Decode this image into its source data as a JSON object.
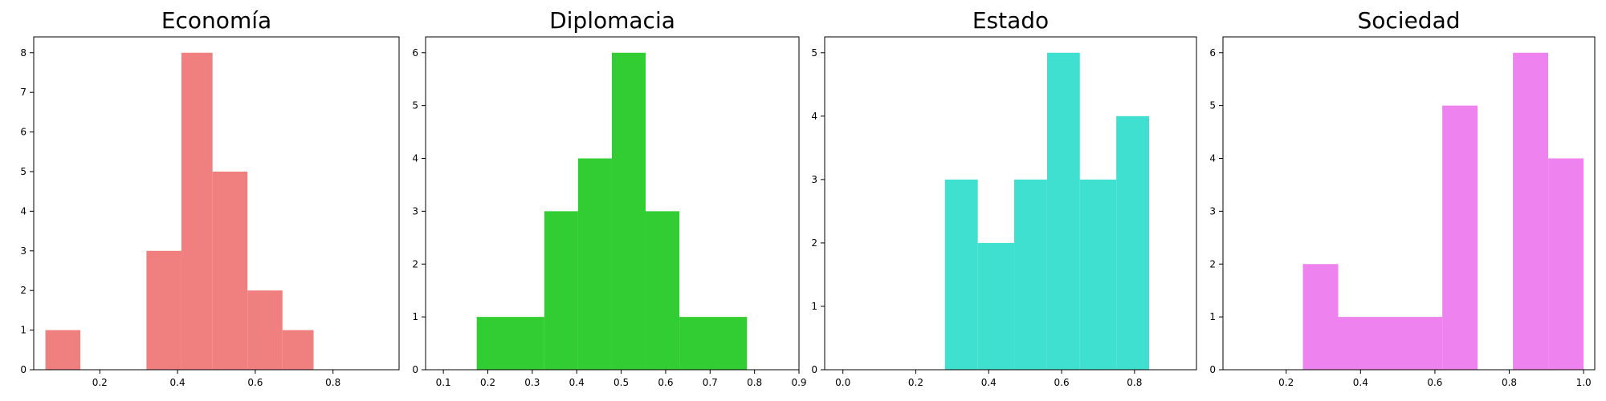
{
  "chart_data": [
    {
      "type": "bar",
      "title": "Economía",
      "color": "#f08080",
      "xlim": [
        0.03,
        0.97
      ],
      "ylim": [
        0,
        8.4
      ],
      "xticks": [
        0.2,
        0.4,
        0.6,
        0.8
      ],
      "xtick_labels": [
        "0.2",
        "0.4",
        "0.6",
        "0.8"
      ],
      "yticks": [
        0,
        1,
        2,
        3,
        4,
        5,
        6,
        7,
        8
      ],
      "ytick_labels": [
        "0",
        "1",
        "2",
        "3",
        "4",
        "5",
        "6",
        "7",
        "8"
      ],
      "bins": [
        {
          "x0": 0.06,
          "x1": 0.15,
          "count": 1
        },
        {
          "x0": 0.15,
          "x1": 0.23,
          "count": 0
        },
        {
          "x0": 0.23,
          "x1": 0.32,
          "count": 0
        },
        {
          "x0": 0.32,
          "x1": 0.41,
          "count": 3
        },
        {
          "x0": 0.41,
          "x1": 0.49,
          "count": 8
        },
        {
          "x0": 0.49,
          "x1": 0.58,
          "count": 5
        },
        {
          "x0": 0.58,
          "x1": 0.67,
          "count": 2
        },
        {
          "x0": 0.67,
          "x1": 0.75,
          "count": 1
        }
      ]
    },
    {
      "type": "bar",
      "title": "Diplomacia",
      "color": "#32cd32",
      "xlim": [
        0.06,
        0.9
      ],
      "ylim": [
        0,
        6.3
      ],
      "xticks": [
        0.1,
        0.2,
        0.3,
        0.4,
        0.5,
        0.6,
        0.7,
        0.8,
        0.9
      ],
      "xtick_labels": [
        "0.1",
        "0.2",
        "0.3",
        "0.4",
        "0.5",
        "0.6",
        "0.7",
        "0.8",
        "0.9"
      ],
      "yticks": [
        0,
        1,
        2,
        3,
        4,
        5,
        6
      ],
      "ytick_labels": [
        "0",
        "1",
        "2",
        "3",
        "4",
        "5",
        "6"
      ],
      "bins": [
        {
          "x0": 0.175,
          "x1": 0.327,
          "count": 1
        },
        {
          "x0": 0.327,
          "x1": 0.403,
          "count": 3
        },
        {
          "x0": 0.403,
          "x1": 0.479,
          "count": 4
        },
        {
          "x0": 0.479,
          "x1": 0.555,
          "count": 6
        },
        {
          "x0": 0.555,
          "x1": 0.631,
          "count": 3
        },
        {
          "x0": 0.631,
          "x1": 0.783,
          "count": 1
        }
      ]
    },
    {
      "type": "bar",
      "title": "Estado",
      "color": "#40e0d0",
      "xlim": [
        -0.05,
        0.97
      ],
      "ylim": [
        0,
        5.25
      ],
      "xticks": [
        0.0,
        0.2,
        0.4,
        0.6,
        0.8
      ],
      "xtick_labels": [
        "0.0",
        "0.2",
        "0.4",
        "0.6",
        "0.8"
      ],
      "yticks": [
        0,
        1,
        2,
        3,
        4,
        5
      ],
      "ytick_labels": [
        "0",
        "1",
        "2",
        "3",
        "4",
        "5"
      ],
      "bins": [
        {
          "x0": 0.28,
          "x1": 0.37,
          "count": 3
        },
        {
          "x0": 0.37,
          "x1": 0.47,
          "count": 2
        },
        {
          "x0": 0.47,
          "x1": 0.56,
          "count": 3
        },
        {
          "x0": 0.56,
          "x1": 0.65,
          "count": 5
        },
        {
          "x0": 0.65,
          "x1": 0.75,
          "count": 3
        },
        {
          "x0": 0.75,
          "x1": 0.84,
          "count": 4
        }
      ]
    },
    {
      "type": "bar",
      "title": "Sociedad",
      "color": "#ee82ee",
      "xlim": [
        0.03,
        1.03
      ],
      "ylim": [
        0,
        6.3
      ],
      "xticks": [
        0.2,
        0.4,
        0.6,
        0.8,
        1.0
      ],
      "xtick_labels": [
        "0.2",
        "0.4",
        "0.6",
        "0.8",
        "1.0"
      ],
      "yticks": [
        0,
        1,
        2,
        3,
        4,
        5,
        6
      ],
      "ytick_labels": [
        "0",
        "1",
        "2",
        "3",
        "4",
        "5",
        "6"
      ],
      "bins": [
        {
          "x0": 0.245,
          "x1": 0.34,
          "count": 2
        },
        {
          "x0": 0.34,
          "x1": 0.62,
          "count": 1
        },
        {
          "x0": 0.62,
          "x1": 0.715,
          "count": 5
        },
        {
          "x0": 0.715,
          "x1": 0.81,
          "count": 0
        },
        {
          "x0": 0.81,
          "x1": 0.905,
          "count": 6
        },
        {
          "x0": 0.905,
          "x1": 1.0,
          "count": 4
        }
      ]
    }
  ]
}
